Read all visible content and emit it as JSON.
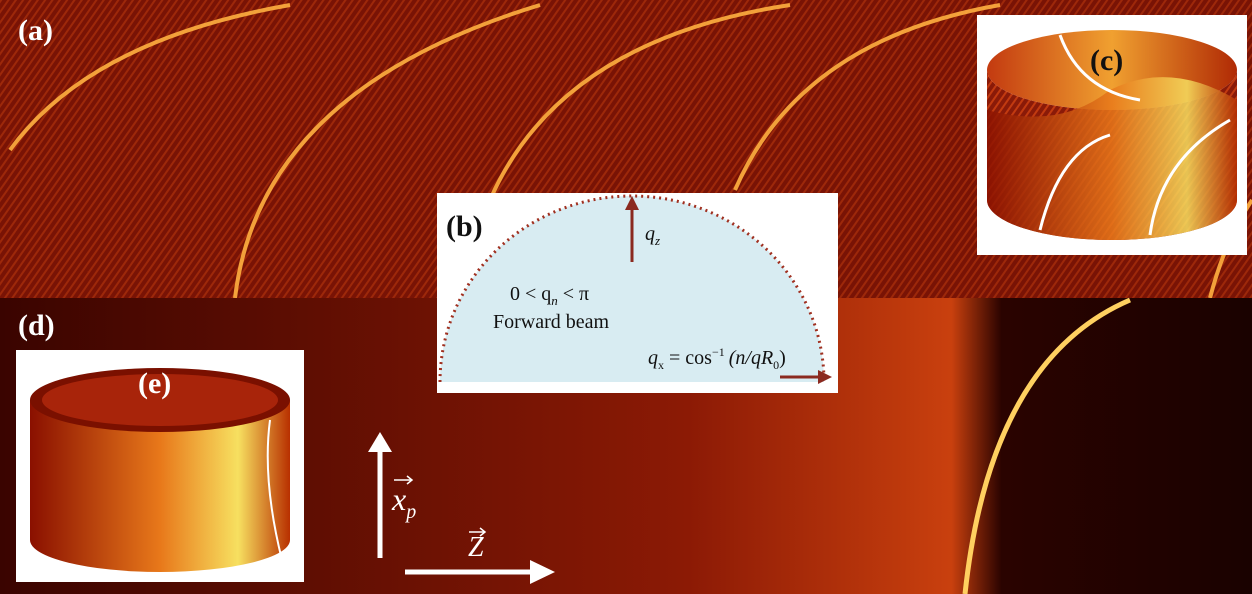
{
  "panels": {
    "a": {
      "label": "(a)"
    },
    "b": {
      "label": "(b)",
      "qz": {
        "base": "q",
        "sub": "z"
      },
      "condition": {
        "pre": "0 < q",
        "sub": "n",
        "post": " < π"
      },
      "caption": "Forward beam",
      "qx": {
        "base": "q",
        "sub": "x",
        "eq": " = cos",
        "sup": "−1",
        "arg": "(n/qR",
        "argsub": "0",
        "close": ")"
      }
    },
    "c": {
      "label": "(c)"
    },
    "d": {
      "label": "(d)",
      "xp": {
        "base": "x",
        "sub": "p"
      },
      "z": "Z"
    },
    "e": {
      "label": "(e)"
    }
  }
}
